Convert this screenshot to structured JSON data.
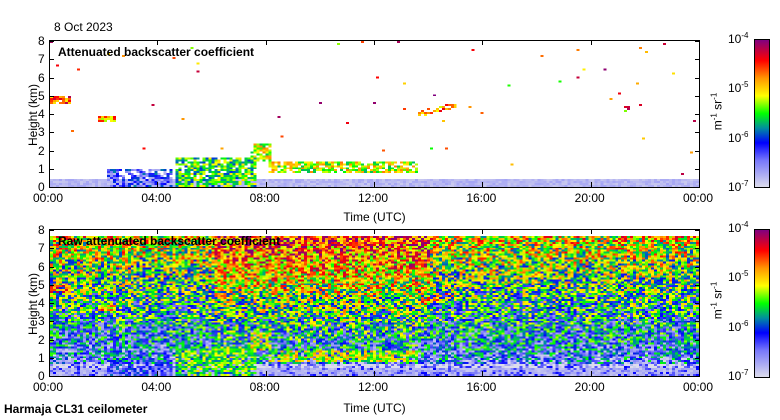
{
  "date": "8 Oct 2023",
  "footer": "Harmaja CL31 ceilometer",
  "colors": {
    "low": "#d8d8ec",
    "blue": "#0000ff",
    "green": "#00ff00",
    "yellow": "#ffff00",
    "red": "#ff0000",
    "high": "#800080"
  },
  "chart_data": [
    {
      "type": "heatmap",
      "title": "Attenuated backscatter coefficient",
      "xlabel": "Time (UTC)",
      "ylabel": "Height (km)",
      "xlim_hours": [
        0,
        24
      ],
      "ylim_km": [
        0,
        8
      ],
      "xticks": [
        "00:00",
        "04:00",
        "08:00",
        "12:00",
        "16:00",
        "20:00",
        "00:00"
      ],
      "yticks": [
        "0",
        "1",
        "2",
        "3",
        "4",
        "5",
        "6",
        "7",
        "8"
      ],
      "colorbar": {
        "label": "m-1 sr-1",
        "label_parts": [
          "m",
          "-1",
          "sr",
          "-1"
        ],
        "scale": "log",
        "range": [
          1e-07,
          0.0001
        ],
        "ticks": [
          "-7",
          "-6",
          "-5",
          "-4"
        ]
      },
      "features": [
        {
          "t": [
            0,
            24
          ],
          "h": [
            0,
            0.4
          ],
          "log10_beta": -6.8
        },
        {
          "t": [
            2,
            4.5
          ],
          "h": [
            0,
            0.9
          ],
          "log10_beta": -6.3
        },
        {
          "t": [
            4.6,
            7.6
          ],
          "h": [
            0,
            1.6
          ],
          "log10_beta": -5.5
        },
        {
          "t": [
            0,
            0.7
          ],
          "h": [
            4.5,
            4.9
          ],
          "log10_beta": -4.6
        },
        {
          "t": [
            1.7,
            2.4
          ],
          "h": [
            3.5,
            3.8
          ],
          "log10_beta": -4.9
        },
        {
          "t": [
            7.4,
            8.1
          ],
          "h": [
            1.3,
            2.3
          ],
          "log10_beta": -5.2
        },
        {
          "t": [
            8,
            13.5
          ],
          "h": [
            0.7,
            1.3
          ],
          "log10_beta": -5.2
        },
        {
          "t": [
            13.6,
            15
          ],
          "h": [
            3.8,
            4.4
          ],
          "log10_beta": -4.8
        }
      ]
    },
    {
      "type": "heatmap",
      "title": "Raw attenuated backscatter coefficient",
      "xlabel": "Time (UTC)",
      "ylabel": "Height (km)",
      "xlim_hours": [
        0,
        24
      ],
      "ylim_km": [
        0,
        8
      ],
      "xticks": [
        "00:00",
        "04:00",
        "08:00",
        "12:00",
        "16:00",
        "20:00",
        "00:00"
      ],
      "yticks": [
        "0",
        "1",
        "2",
        "3",
        "4",
        "5",
        "6",
        "7",
        "8"
      ],
      "colorbar": {
        "label": "m-1 sr-1",
        "label_parts": [
          "m",
          "-1",
          "sr",
          "-1"
        ],
        "scale": "log",
        "range": [
          1e-07,
          0.0001
        ],
        "ticks": [
          "-7",
          "-6",
          "-5",
          "-4"
        ]
      }
    }
  ]
}
